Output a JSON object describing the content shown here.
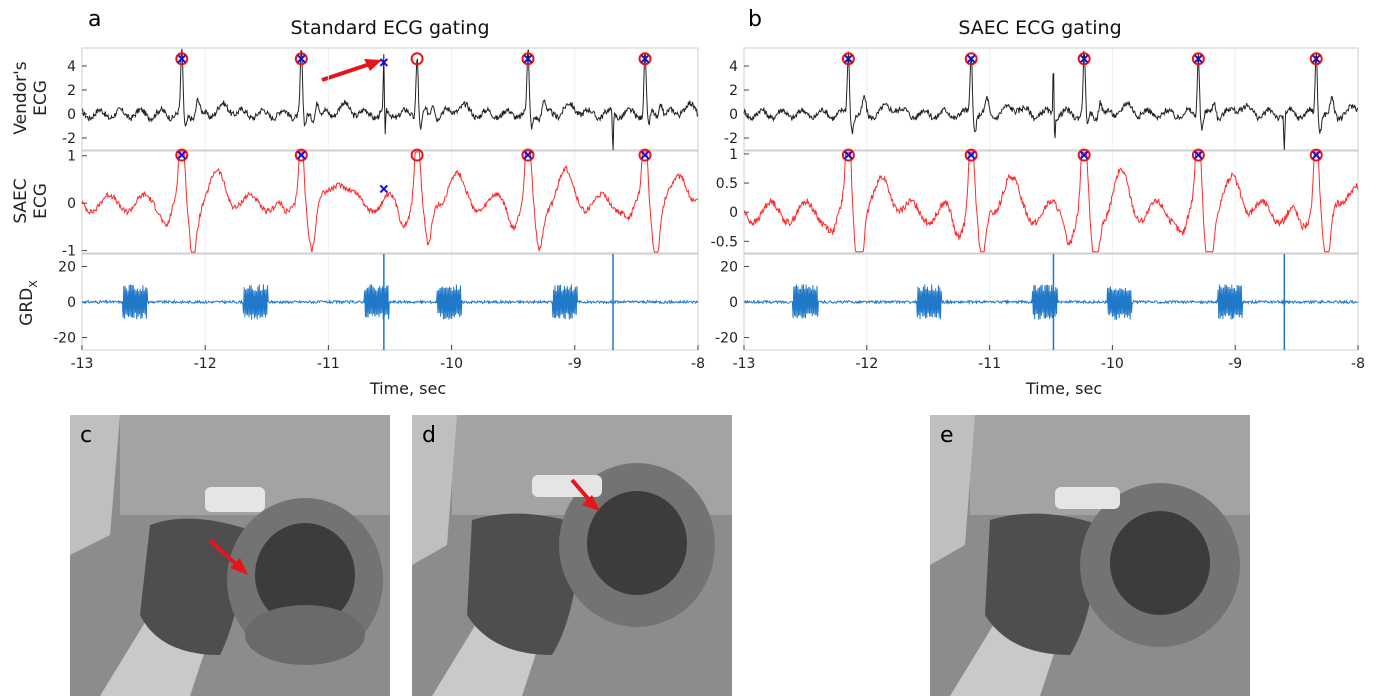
{
  "panels": {
    "a": {
      "letter": "a",
      "title": "Standard ECG gating"
    },
    "b": {
      "letter": "b",
      "title": "SAEC ECG gating"
    },
    "c": {
      "letter": "c"
    },
    "d": {
      "letter": "d"
    },
    "e": {
      "letter": "e"
    }
  },
  "ylabels": {
    "vendor": [
      "Vendor's",
      "ECG"
    ],
    "saec": [
      "SAEC",
      "ECG"
    ],
    "grd": "GRD",
    "grd_sub": "X"
  },
  "xlabel": "Time, sec",
  "colors": {
    "vendor_trace": "#222222",
    "saec_trace": "#ff2a2a",
    "grd_trace": "#1f78c8",
    "marker_circle": "#e8141c",
    "marker_cross": "#1010dd",
    "arrow": "#e8141c",
    "mri_bg": "#8a8a8a"
  },
  "chart_data": [
    {
      "type": "line",
      "panel": "a",
      "title": "Standard ECG gating",
      "xlabel": "Time, sec",
      "xlim": [
        -13,
        -8
      ],
      "xticks": [
        -13,
        -12,
        -11,
        -10,
        -9,
        -8
      ],
      "subplots": [
        {
          "ylabel": "Vendor's ECG",
          "ylim": [
            -3,
            5.5
          ],
          "yticks": [
            -2,
            0,
            2,
            4
          ],
          "series": "vendor_ecg"
        },
        {
          "ylabel": "SAEC ECG",
          "ylim": [
            -1.05,
            1.1
          ],
          "yticks": [
            -1,
            0,
            1
          ],
          "series": "saec_ecg"
        },
        {
          "ylabel": "GRD_X",
          "ylim": [
            -27,
            27
          ],
          "yticks": [
            -20,
            0,
            20
          ],
          "series": "gradient_x"
        }
      ],
      "r_peaks": [
        -12.19,
        -11.22,
        -10.28,
        -9.38,
        -8.43
      ],
      "vendor_triggers": [
        -12.19,
        -11.22,
        -10.55,
        -9.38,
        -8.43
      ],
      "missed_peak": -10.28,
      "false_trigger": -10.55,
      "gradient_bursts": [
        [
          -12.67,
          -12.47
        ],
        [
          -11.69,
          -11.49
        ],
        [
          -10.71,
          -10.51
        ],
        [
          -10.12,
          -9.92
        ],
        [
          -9.18,
          -8.98
        ]
      ],
      "gradient_spikes": [
        -10.55,
        -8.69
      ]
    },
    {
      "type": "line",
      "panel": "b",
      "title": "SAEC ECG gating",
      "xlabel": "Time, sec",
      "xlim": [
        -13,
        -8
      ],
      "xticks": [
        -13,
        -12,
        -11,
        -10,
        -9,
        -8
      ],
      "subplots": [
        {
          "ylabel": "",
          "ylim": [
            -3,
            5.5
          ],
          "yticks": [
            -2,
            0,
            2,
            4
          ],
          "series": "vendor_ecg"
        },
        {
          "ylabel": "",
          "ylim": [
            -0.7,
            1.05
          ],
          "yticks": [
            -0.5,
            0,
            0.5,
            1
          ],
          "series": "saec_ecg"
        },
        {
          "ylabel": "",
          "ylim": [
            -27,
            27
          ],
          "yticks": [
            -20,
            0,
            20
          ],
          "series": "gradient_x"
        }
      ],
      "r_peaks": [
        -12.15,
        -11.15,
        -10.23,
        -9.3,
        -8.34
      ],
      "saec_triggers": [
        -12.15,
        -11.15,
        -10.23,
        -9.3,
        -8.34
      ],
      "gradient_bursts": [
        [
          -12.6,
          -12.4
        ],
        [
          -11.59,
          -11.39
        ],
        [
          -10.65,
          -10.45
        ],
        [
          -10.04,
          -9.84
        ],
        [
          -9.14,
          -8.94
        ]
      ],
      "gradient_spikes": [
        -10.48,
        -8.6
      ]
    }
  ]
}
